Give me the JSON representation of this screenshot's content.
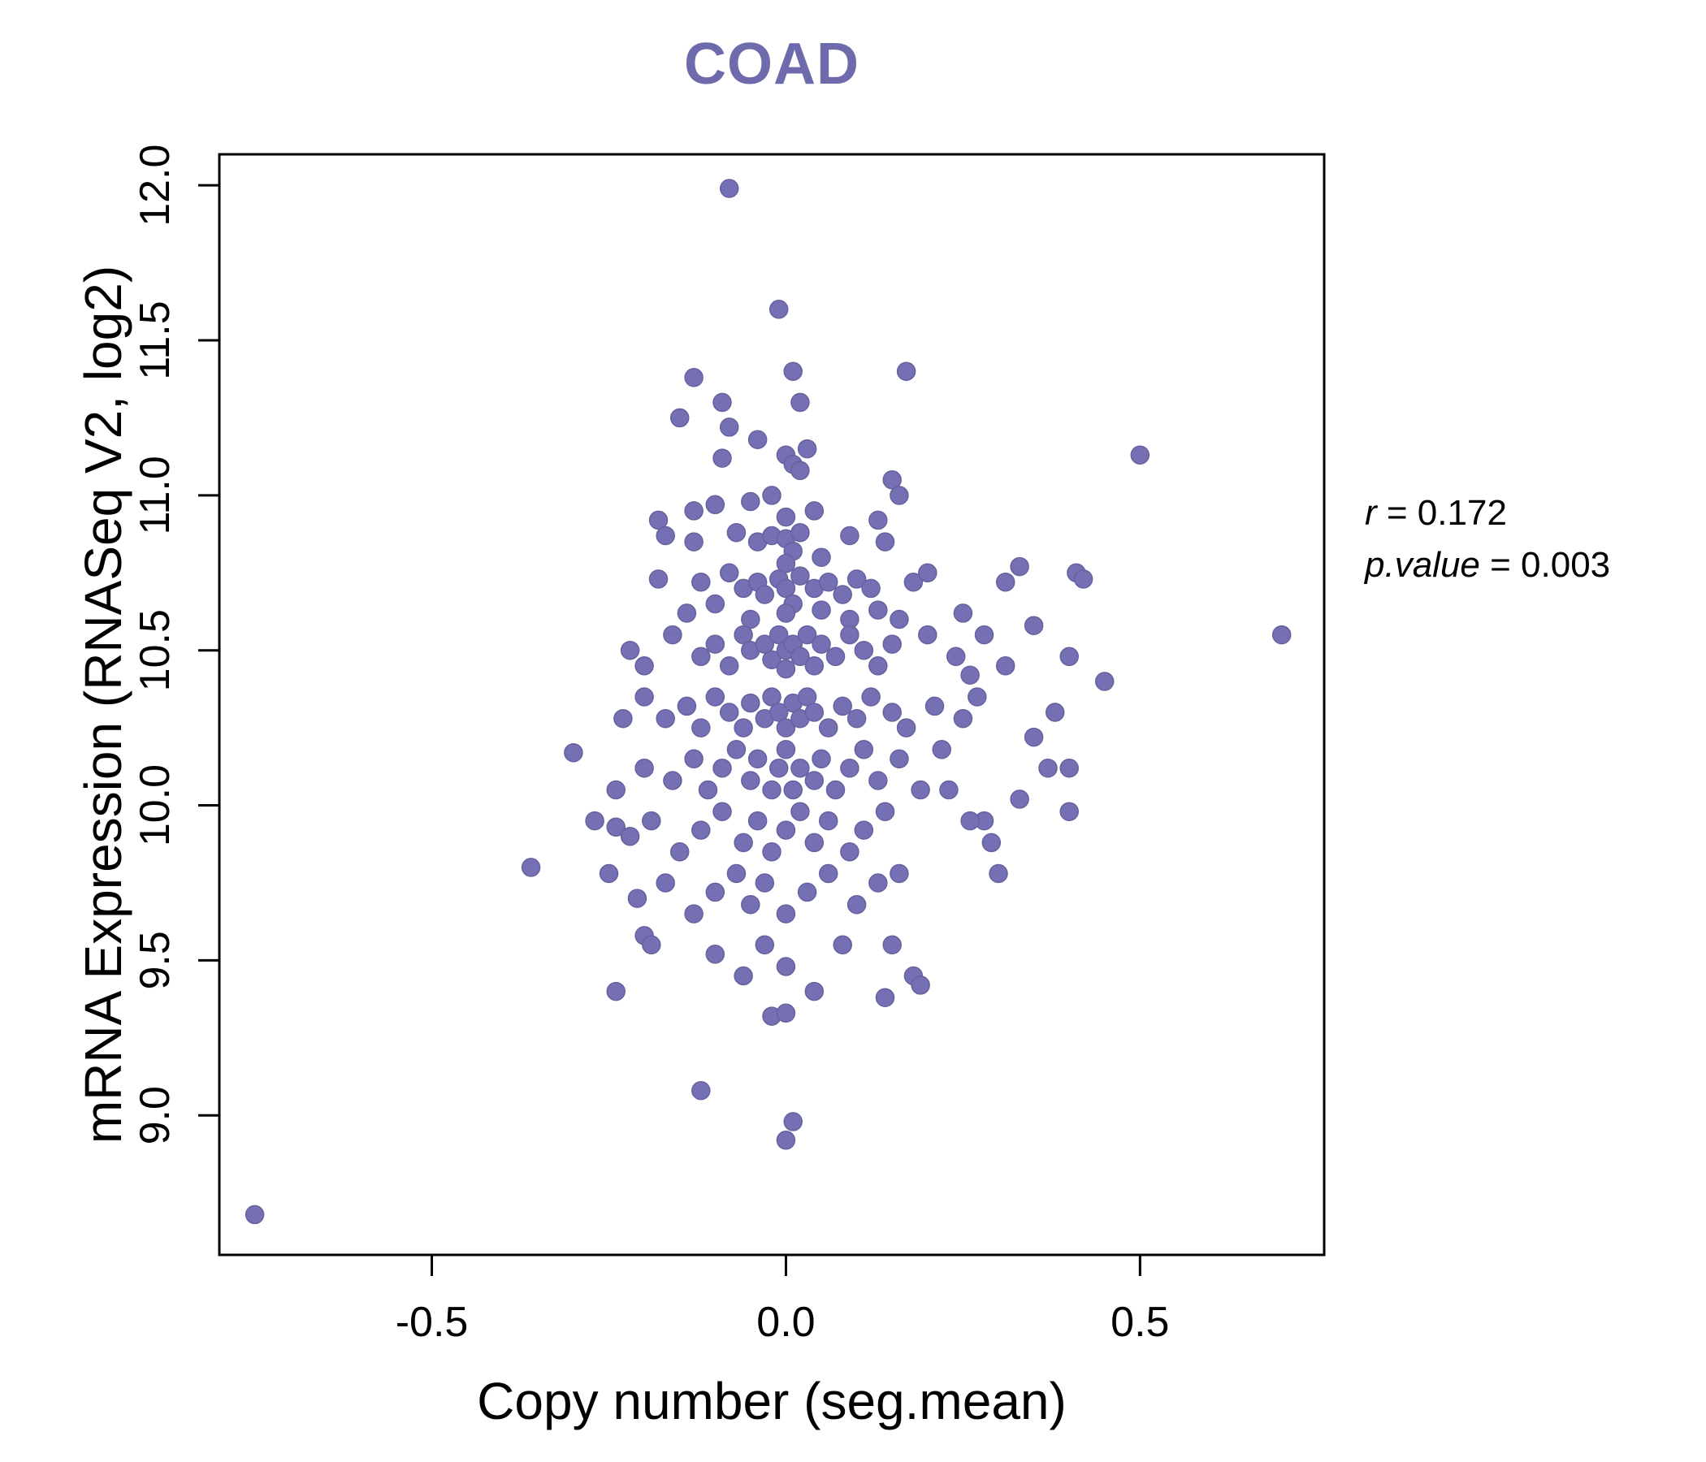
{
  "chart_data": {
    "type": "scatter",
    "title": "COAD",
    "xlabel": "Copy number (seg.mean)",
    "ylabel": "mRNA Expression (RNASeq V2, log2)",
    "xlim": [
      -0.8,
      0.76
    ],
    "ylim": [
      8.55,
      12.1
    ],
    "xtick_values": [
      -0.5,
      0.0,
      0.5
    ],
    "xtick_labels": [
      "-0.5",
      "0.0",
      "0.5"
    ],
    "ytick_values": [
      9.0,
      9.5,
      10.0,
      10.5,
      11.0,
      11.5,
      12.0
    ],
    "ytick_labels": [
      "9.0",
      "9.5",
      "10.0",
      "10.5",
      "11.0",
      "11.5",
      "12.0"
    ],
    "grid": false,
    "legend": "none",
    "point_color": "#7570b3",
    "point_stroke": "#66629f",
    "title_color": "#6e6bad",
    "annotation": {
      "line1_label": "r",
      "line1_value": " = 0.172",
      "line2_label": "p.value",
      "line2_value": " = 0.003"
    },
    "points": [
      [
        -0.75,
        8.68
      ],
      [
        -0.08,
        11.99
      ],
      [
        -0.01,
        11.6
      ],
      [
        -0.13,
        11.38
      ],
      [
        0.01,
        11.4
      ],
      [
        0.17,
        11.4
      ],
      [
        -0.15,
        11.25
      ],
      [
        -0.08,
        11.22
      ],
      [
        0.0,
        11.13
      ],
      [
        0.01,
        11.1
      ],
      [
        -0.09,
        11.12
      ],
      [
        0.5,
        11.13
      ],
      [
        0.15,
        11.05
      ],
      [
        0.7,
        10.55
      ],
      [
        -0.36,
        9.8
      ],
      [
        -0.3,
        10.17
      ],
      [
        0.0,
        8.92
      ],
      [
        0.01,
        8.98
      ],
      [
        -0.12,
        9.08
      ],
      [
        -0.02,
        9.32
      ],
      [
        -0.1,
        10.97
      ],
      [
        -0.05,
        10.98
      ],
      [
        -0.02,
        11.0
      ],
      [
        0.02,
        11.08
      ],
      [
        0.03,
        11.15
      ],
      [
        -0.13,
        10.95
      ],
      [
        0.0,
        10.93
      ],
      [
        0.04,
        10.95
      ],
      [
        0.16,
        11.0
      ],
      [
        -0.18,
        10.92
      ],
      [
        -0.09,
        11.3
      ],
      [
        0.02,
        11.3
      ],
      [
        -0.04,
        11.18
      ],
      [
        0.13,
        10.92
      ],
      [
        -0.17,
        10.87
      ],
      [
        -0.13,
        10.85
      ],
      [
        -0.07,
        10.88
      ],
      [
        -0.04,
        10.85
      ],
      [
        -0.02,
        10.87
      ],
      [
        0.0,
        10.86
      ],
      [
        0.01,
        10.82
      ],
      [
        0.02,
        10.88
      ],
      [
        0.05,
        10.8
      ],
      [
        0.09,
        10.87
      ],
      [
        0.14,
        10.85
      ],
      [
        0.0,
        10.78
      ],
      [
        -0.18,
        10.73
      ],
      [
        -0.12,
        10.72
      ],
      [
        -0.1,
        10.65
      ],
      [
        -0.08,
        10.75
      ],
      [
        -0.06,
        10.7
      ],
      [
        -0.04,
        10.72
      ],
      [
        -0.03,
        10.68
      ],
      [
        -0.01,
        10.73
      ],
      [
        0.0,
        10.7
      ],
      [
        0.01,
        10.65
      ],
      [
        0.02,
        10.74
      ],
      [
        0.04,
        10.7
      ],
      [
        0.06,
        10.72
      ],
      [
        0.08,
        10.68
      ],
      [
        0.1,
        10.73
      ],
      [
        0.12,
        10.7
      ],
      [
        0.18,
        10.72
      ],
      [
        0.2,
        10.75
      ],
      [
        -0.14,
        10.62
      ],
      [
        -0.05,
        10.6
      ],
      [
        0.0,
        10.62
      ],
      [
        0.05,
        10.63
      ],
      [
        0.09,
        10.6
      ],
      [
        0.13,
        10.63
      ],
      [
        0.16,
        10.6
      ],
      [
        0.31,
        10.72
      ],
      [
        0.33,
        10.77
      ],
      [
        0.41,
        10.75
      ],
      [
        0.42,
        10.73
      ],
      [
        0.35,
        10.58
      ],
      [
        0.4,
        10.48
      ],
      [
        0.28,
        10.55
      ],
      [
        0.25,
        10.62
      ],
      [
        0.37,
        10.12
      ],
      [
        0.4,
        10.12
      ],
      [
        -0.22,
        10.5
      ],
      [
        -0.2,
        10.45
      ],
      [
        -0.16,
        10.55
      ],
      [
        -0.12,
        10.48
      ],
      [
        -0.1,
        10.52
      ],
      [
        -0.08,
        10.45
      ],
      [
        -0.06,
        10.55
      ],
      [
        -0.05,
        10.5
      ],
      [
        -0.03,
        10.52
      ],
      [
        -0.02,
        10.47
      ],
      [
        -0.01,
        10.55
      ],
      [
        0.0,
        10.5
      ],
      [
        0.0,
        10.44
      ],
      [
        0.01,
        10.52
      ],
      [
        0.02,
        10.48
      ],
      [
        0.03,
        10.55
      ],
      [
        0.04,
        10.45
      ],
      [
        0.05,
        10.52
      ],
      [
        0.07,
        10.48
      ],
      [
        0.09,
        10.55
      ],
      [
        0.11,
        10.5
      ],
      [
        0.13,
        10.45
      ],
      [
        0.15,
        10.52
      ],
      [
        0.2,
        10.55
      ],
      [
        0.24,
        10.48
      ],
      [
        0.26,
        10.42
      ],
      [
        -0.2,
        10.35
      ],
      [
        -0.17,
        10.28
      ],
      [
        -0.14,
        10.32
      ],
      [
        -0.12,
        10.25
      ],
      [
        -0.1,
        10.35
      ],
      [
        -0.08,
        10.3
      ],
      [
        -0.06,
        10.25
      ],
      [
        -0.05,
        10.33
      ],
      [
        -0.03,
        10.28
      ],
      [
        -0.02,
        10.35
      ],
      [
        -0.01,
        10.3
      ],
      [
        0.0,
        10.25
      ],
      [
        0.01,
        10.33
      ],
      [
        0.02,
        10.28
      ],
      [
        0.03,
        10.35
      ],
      [
        0.04,
        10.3
      ],
      [
        0.06,
        10.25
      ],
      [
        0.08,
        10.32
      ],
      [
        0.1,
        10.28
      ],
      [
        0.12,
        10.35
      ],
      [
        0.15,
        10.3
      ],
      [
        0.17,
        10.25
      ],
      [
        0.21,
        10.32
      ],
      [
        0.25,
        10.28
      ],
      [
        -0.24,
        10.05
      ],
      [
        -0.2,
        10.12
      ],
      [
        -0.16,
        10.08
      ],
      [
        -0.13,
        10.15
      ],
      [
        -0.11,
        10.05
      ],
      [
        -0.09,
        10.12
      ],
      [
        -0.07,
        10.18
      ],
      [
        -0.05,
        10.08
      ],
      [
        -0.04,
        10.15
      ],
      [
        -0.02,
        10.05
      ],
      [
        -0.01,
        10.12
      ],
      [
        0.0,
        10.18
      ],
      [
        0.01,
        10.05
      ],
      [
        0.02,
        10.12
      ],
      [
        0.04,
        10.08
      ],
      [
        0.05,
        10.15
      ],
      [
        0.07,
        10.05
      ],
      [
        0.09,
        10.12
      ],
      [
        0.11,
        10.18
      ],
      [
        0.13,
        10.08
      ],
      [
        0.16,
        10.15
      ],
      [
        0.19,
        10.05
      ],
      [
        0.22,
        10.18
      ],
      [
        -0.27,
        9.95
      ],
      [
        -0.24,
        9.93
      ],
      [
        -0.22,
        9.9
      ],
      [
        -0.19,
        9.95
      ],
      [
        -0.15,
        9.85
      ],
      [
        -0.12,
        9.92
      ],
      [
        -0.09,
        9.98
      ],
      [
        -0.06,
        9.88
      ],
      [
        -0.04,
        9.95
      ],
      [
        -0.02,
        9.85
      ],
      [
        0.0,
        9.92
      ],
      [
        0.02,
        9.98
      ],
      [
        0.04,
        9.88
      ],
      [
        0.06,
        9.95
      ],
      [
        0.09,
        9.85
      ],
      [
        0.11,
        9.92
      ],
      [
        0.14,
        9.98
      ],
      [
        0.28,
        9.95
      ],
      [
        -0.25,
        9.78
      ],
      [
        -0.21,
        9.7
      ],
      [
        -0.17,
        9.75
      ],
      [
        -0.13,
        9.65
      ],
      [
        -0.1,
        9.72
      ],
      [
        -0.07,
        9.78
      ],
      [
        -0.05,
        9.68
      ],
      [
        -0.03,
        9.75
      ],
      [
        0.0,
        9.65
      ],
      [
        0.03,
        9.72
      ],
      [
        0.06,
        9.78
      ],
      [
        0.1,
        9.68
      ],
      [
        0.13,
        9.75
      ],
      [
        0.16,
        9.78
      ],
      [
        0.29,
        9.88
      ],
      [
        -0.24,
        9.4
      ],
      [
        -0.2,
        9.58
      ],
      [
        -0.19,
        9.55
      ],
      [
        -0.1,
        9.52
      ],
      [
        -0.06,
        9.45
      ],
      [
        -0.03,
        9.55
      ],
      [
        0.0,
        9.48
      ],
      [
        0.04,
        9.4
      ],
      [
        0.08,
        9.55
      ],
      [
        0.14,
        9.38
      ],
      [
        0.15,
        9.55
      ],
      [
        0.18,
        9.45
      ],
      [
        0.19,
        9.42
      ],
      [
        0.0,
        9.33
      ],
      [
        0.26,
        9.95
      ],
      [
        0.3,
        9.78
      ],
      [
        0.33,
        10.02
      ],
      [
        0.45,
        10.4
      ],
      [
        0.38,
        10.3
      ],
      [
        0.35,
        10.22
      ],
      [
        0.4,
        9.98
      ],
      [
        0.31,
        10.45
      ],
      [
        -0.23,
        10.28
      ],
      [
        0.23,
        10.05
      ],
      [
        0.27,
        10.35
      ]
    ]
  }
}
